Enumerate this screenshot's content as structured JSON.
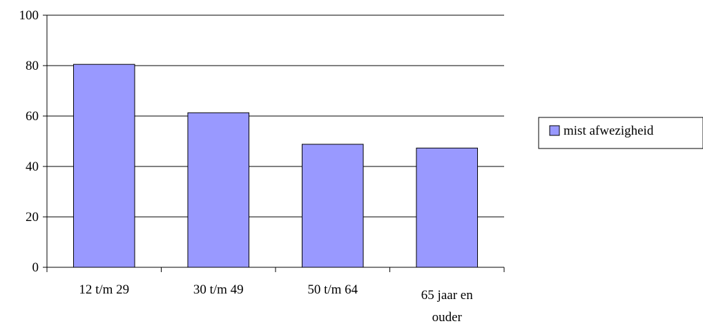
{
  "chart_data": {
    "type": "bar",
    "title": "",
    "xlabel": "",
    "ylabel": "",
    "categories": [
      "12 t/m 29",
      "30 t/m 49",
      "50 t/m 64",
      "65 jaar en ouder"
    ],
    "category_lines": [
      [
        "12 t/m 29"
      ],
      [
        "30 t/m 49"
      ],
      [
        "50 t/m 64"
      ],
      [
        "65 jaar en",
        "ouder"
      ]
    ],
    "series": [
      {
        "name": "mist afwezigheid",
        "values": [
          80.5,
          61.3,
          48.8,
          47.3
        ],
        "color": "#9999ff"
      }
    ],
    "ylim": [
      0,
      100
    ],
    "yticks": [
      "0",
      "20",
      "40",
      "60",
      "80",
      "100"
    ],
    "grid": true,
    "legend": "right"
  }
}
